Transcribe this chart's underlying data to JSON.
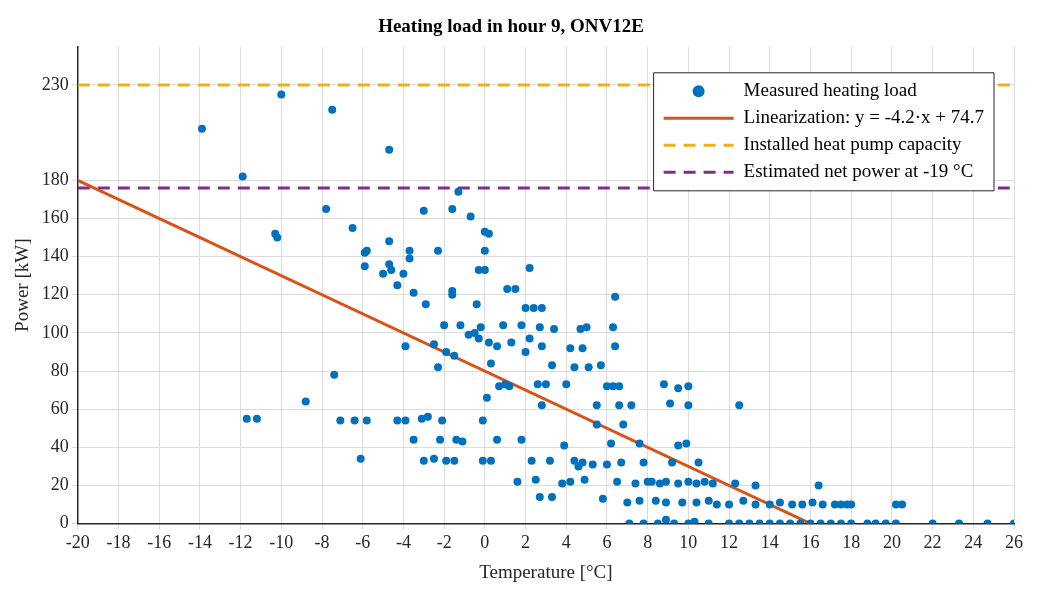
{
  "chart_data": {
    "type": "scatter",
    "title": "Heating load in hour 9, ONV12E",
    "xlabel": "Temperature [°C]",
    "ylabel": "Power [kW]",
    "xlim": [
      -20,
      26
    ],
    "xticks": [
      -20,
      -18,
      -16,
      -14,
      -12,
      -10,
      -8,
      -6,
      -4,
      -2,
      0,
      2,
      4,
      6,
      8,
      10,
      12,
      14,
      16,
      18,
      20,
      22,
      24,
      26
    ],
    "ylim": [
      0,
      250
    ],
    "yticks": [
      0,
      20,
      40,
      60,
      80,
      100,
      120,
      140,
      160,
      180,
      230
    ],
    "grid": true,
    "legend": "top right",
    "series": [
      {
        "name": "Measured heating load",
        "marker": "circle",
        "color": "#0072bd",
        "x": [
          -13.9,
          -10,
          -7.5,
          -11.9,
          -4.7,
          -10.3,
          -10.2,
          -7.8,
          -6.5,
          -5.9,
          -5.9,
          -5.8,
          -5.0,
          -4.7,
          -4.7,
          -4.6,
          -4.3,
          -4.0,
          -3.7,
          -3.7,
          -3.5,
          -3.0,
          -2.9,
          -2.3,
          -1.6,
          -1.6,
          -1.6,
          -1.3,
          -0.7,
          -0.4,
          -0.3,
          0,
          0.2,
          0,
          0,
          -0.2,
          -0.3,
          -0.5,
          0.2,
          0.6,
          0.3,
          0.9,
          1.1,
          1.3,
          1.5,
          1.8,
          2.2,
          2.0,
          2.4,
          2.8,
          2.2,
          2.0,
          2.7,
          2.8,
          3.4,
          3.3,
          4.2,
          4.7,
          5.0,
          4.8,
          5.1,
          4.4,
          4.0,
          6.0,
          6.3,
          6.6,
          6.4,
          6.3,
          6.4,
          5.7,
          5.5,
          6.6,
          3.0,
          2.6,
          2.8,
          1.2,
          1.0,
          0.7,
          0.1,
          -0.8,
          -1.2,
          -2.0,
          -2.5,
          -2.3,
          -1.9,
          -1.5,
          -3.9,
          -7.4,
          -8.8,
          -11.7,
          -11.2,
          -7.1,
          -6.4,
          -5.8,
          -4.3,
          -3.9,
          -3.5,
          -3.1,
          -2.8,
          -2.2,
          -1.4,
          -1.1,
          -2.1,
          -0.1,
          -6.1,
          -3.0,
          -2.5,
          -1.9,
          -1.5,
          -0.1,
          0.3,
          0.6,
          1.8,
          1.6,
          2.5,
          2.3,
          3.2,
          3.9,
          4.4,
          4.8,
          5.3,
          5.5,
          4.6,
          3.8,
          4.2,
          5.8,
          4.9,
          3.3,
          2.7,
          6.0,
          6.5,
          6.7,
          6.8,
          7.6,
          7.8,
          7.6,
          8.0,
          8.2,
          8.6,
          8.9,
          9.5,
          10.0,
          10.4,
          10.8,
          9.2,
          9.5,
          9.9,
          10.0,
          9.5,
          8.8,
          9.1,
          10.0,
          10.5,
          12.5,
          11.2,
          11.4,
          12.0,
          12.7,
          13.3,
          14.0,
          14.5,
          15.1,
          15.6,
          16.1,
          16.4,
          16.6,
          17.2,
          17.5,
          17.8,
          18.0,
          20.2,
          20.5,
          7.1,
          7.8,
          8.5,
          8.9,
          9.3,
          10.0,
          10.3,
          11.0,
          12.0,
          12.5,
          13.0,
          13.5,
          14.0,
          14.5,
          15.0,
          15.5,
          16.0,
          16.5,
          17.0,
          17.5,
          18.0,
          18.8,
          19.2,
          19.7,
          20.2,
          22.0,
          23.3,
          24.7,
          26.0,
          7.0,
          8.4,
          8.9,
          9.7,
          10.4,
          11.0,
          7.4,
          12.3,
          13.3,
          6.2,
          7.2
        ],
        "values": [
          207,
          225,
          217,
          182,
          196,
          152,
          150,
          165,
          155,
          142,
          135,
          143,
          131,
          148,
          136,
          133,
          125,
          131,
          143,
          139,
          121,
          164,
          115,
          143,
          165,
          122,
          120,
          174,
          161,
          115,
          133,
          153,
          152,
          143,
          133,
          103,
          97,
          100,
          95,
          93,
          84,
          104,
          123,
          95,
          123,
          104,
          134,
          113,
          113,
          113,
          97,
          90,
          103,
          93,
          102,
          83,
          92,
          102,
          103,
          92,
          82,
          82,
          73,
          72,
          72,
          72,
          119,
          103,
          93,
          83,
          62,
          62,
          73,
          73,
          62,
          72,
          73,
          72,
          66,
          99,
          104,
          104,
          94,
          82,
          90,
          88,
          93,
          78,
          64,
          55,
          55,
          54,
          54,
          54,
          54,
          54,
          44,
          55,
          56,
          44,
          44,
          43,
          54,
          54,
          34,
          33,
          34,
          33,
          33,
          33,
          33,
          44,
          44,
          22,
          23,
          33,
          33,
          41,
          33,
          32,
          31,
          52,
          30,
          21,
          22,
          13,
          23,
          14,
          14,
          31,
          22,
          32,
          52,
          42,
          32,
          12,
          22,
          22,
          21,
          22,
          21,
          22,
          21,
          22,
          32,
          41,
          42,
          72,
          71,
          73,
          63,
          62,
          32,
          62,
          21,
          10,
          10,
          12,
          10,
          10,
          11,
          10,
          10,
          11,
          20,
          10,
          10,
          10,
          10,
          10,
          10,
          10,
          0,
          0,
          0,
          2,
          0,
          0,
          1,
          0,
          0,
          0,
          0,
          0,
          0,
          0,
          0,
          0,
          0,
          0,
          0,
          0,
          0,
          0,
          0,
          0,
          0,
          0,
          0,
          0,
          0,
          11,
          12,
          11,
          11,
          11,
          12,
          21,
          21,
          20,
          42,
          62
        ]
      },
      {
        "name": "Linearization: y = -4.2·x + 74.7",
        "type": "line",
        "marker": "none",
        "color": "#d95319",
        "x": [
          -20,
          16
        ],
        "values": [
          180,
          0
        ]
      }
    ],
    "ref_lines": [
      {
        "axis": "y",
        "value": 230,
        "label": "Installed heat pump capacity",
        "color": "#edb120",
        "line_style": "dashed"
      },
      {
        "axis": "y",
        "value": 176,
        "label": "Estimated net power at -19 °C",
        "color": "#7e2f8e",
        "line_style": "dashed"
      }
    ]
  }
}
